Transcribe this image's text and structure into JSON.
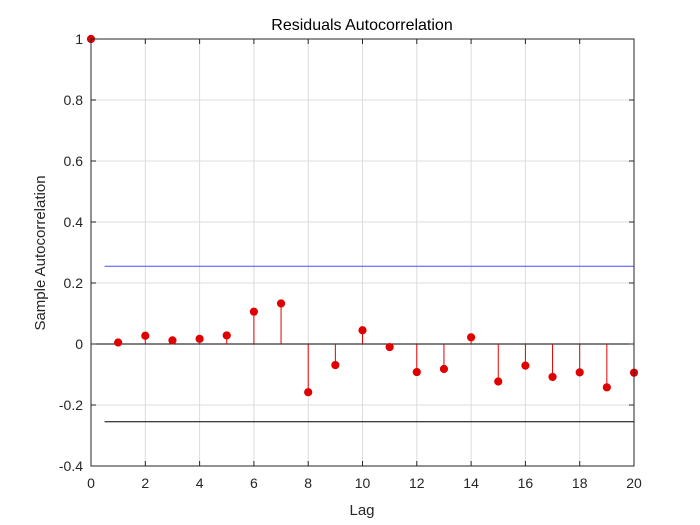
{
  "chart_data": {
    "type": "stem",
    "title": "Residuals Autocorrelation",
    "xlabel": "Lag",
    "ylabel": "Sample Autocorrelation",
    "xlim": [
      0,
      20
    ],
    "ylim": [
      -0.4,
      1
    ],
    "xticks": [
      0,
      2,
      4,
      6,
      8,
      10,
      12,
      14,
      16,
      18,
      20
    ],
    "yticks": [
      -0.4,
      -0.2,
      0,
      0.2,
      0.4,
      0.6,
      0.8,
      1
    ],
    "ytick_labels": [
      "-0.4",
      "-0.2",
      "0",
      "0.2",
      "0.4",
      "0.6",
      "0.8",
      "1"
    ],
    "grid": true,
    "series": [
      {
        "x": [
          0,
          1,
          2,
          3,
          4,
          5,
          6,
          7,
          8,
          9,
          10,
          11,
          12,
          13,
          14,
          15,
          16,
          17,
          18,
          19,
          20
        ],
        "values": [
          1.0,
          0.005,
          0.027,
          0.012,
          0.017,
          0.028,
          0.106,
          0.133,
          -0.158,
          -0.069,
          0.045,
          -0.01,
          -0.092,
          -0.082,
          0.022,
          -0.123,
          -0.071,
          -0.108,
          -0.093,
          -0.142,
          -0.094
        ],
        "color": "#e00000"
      }
    ],
    "confidence_bounds": {
      "upper": 0.255,
      "lower": -0.255,
      "from_lag": 0.5,
      "to_lag": 20
    },
    "colors": {
      "stem": "#e00000",
      "upper_bound": "#4d4dff",
      "lower_bound": "#000000",
      "zero_line": "#000000",
      "grid": "#dcdcdc"
    }
  }
}
